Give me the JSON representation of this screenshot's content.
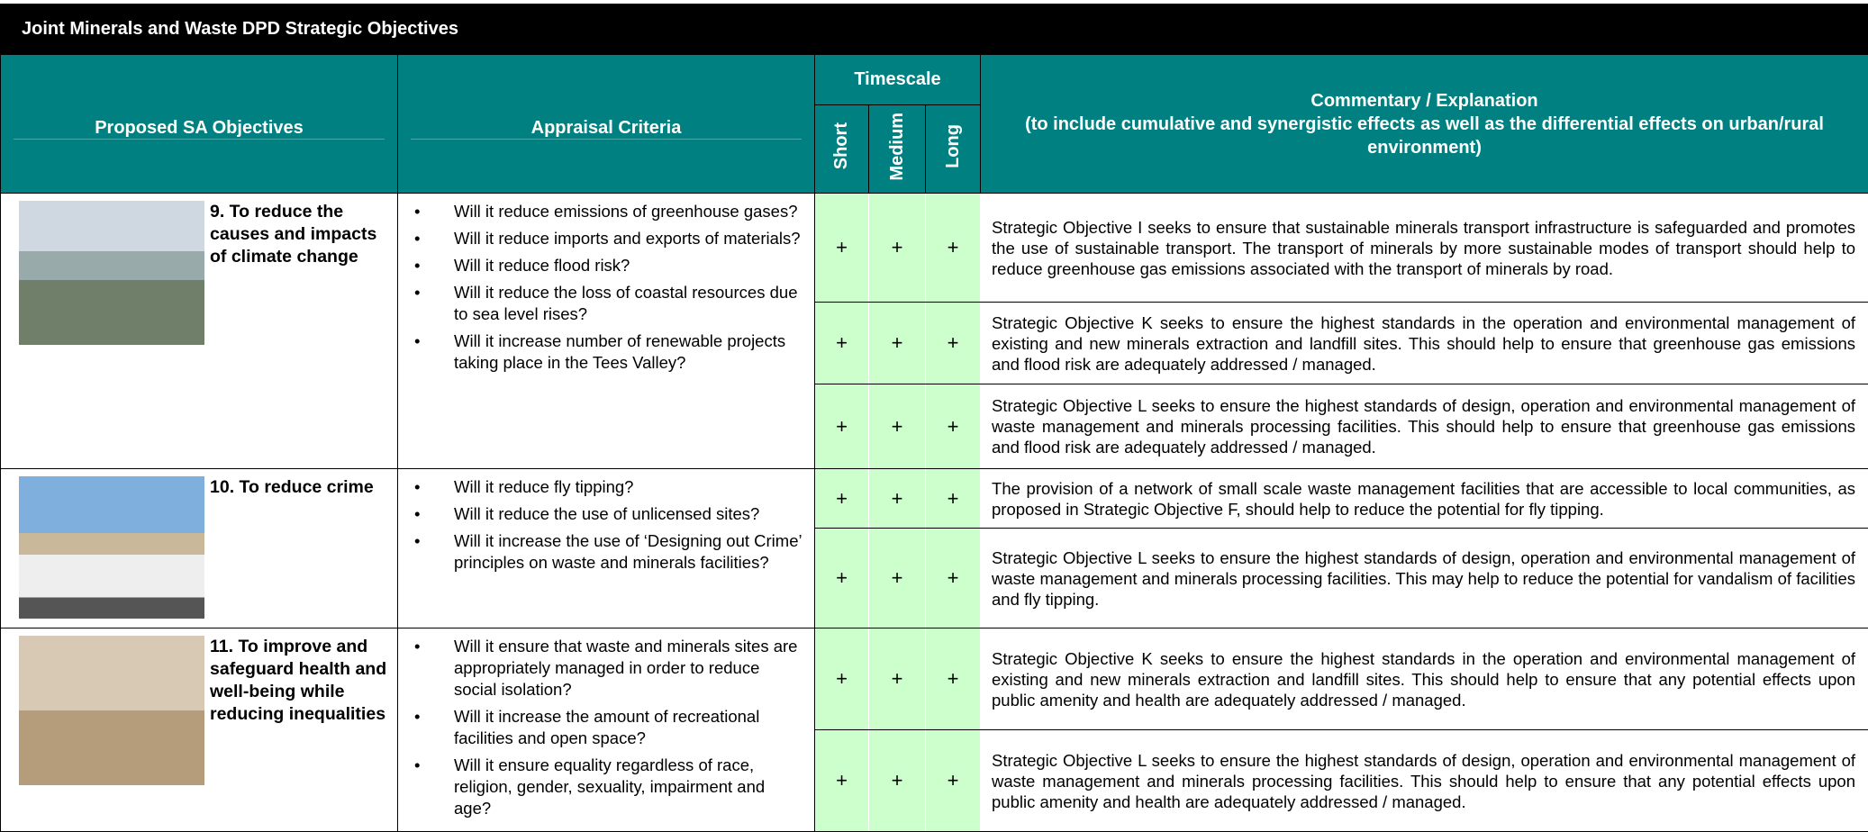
{
  "header": {
    "title": "Joint Minerals and Waste DPD Strategic Objectives"
  },
  "table": {
    "columns": {
      "objectives": "Proposed SA Objectives",
      "criteria": "Appraisal Criteria",
      "timescale": "Timescale",
      "short": "Short",
      "medium": "Medium",
      "long": "Long",
      "commentary": "Commentary / Explanation",
      "commentary_note": "(to include cumulative and synergistic effects as well as the differential effects on urban/rural environment)"
    },
    "rows": [
      {
        "objective": "9. To reduce the causes and impacts of climate change",
        "criteria": [
          "Will it reduce emissions of greenhouse gases?",
          "Will it reduce imports and exports of materials?",
          "Will it reduce flood risk?",
          "Will it reduce the loss of coastal resources due to sea level rises?",
          "Will it increase number of renewable projects taking place in the Tees Valley?"
        ],
        "assessments": [
          {
            "short": "+",
            "medium": "+",
            "long": "+",
            "commentary": "Strategic Objective I seeks to ensure that sustainable minerals transport infrastructure is safeguarded and promotes the use of sustainable transport. The transport of minerals by more sustainable modes of transport should help to reduce greenhouse gas emissions associated with the transport of minerals by road."
          },
          {
            "short": "+",
            "medium": "+",
            "long": "+",
            "commentary": "Strategic Objective K seeks to ensure the highest standards in the operation and environmental management of existing and new minerals extraction and landfill sites. This should help to ensure that greenhouse gas emissions and flood risk are adequately addressed / managed."
          },
          {
            "short": "+",
            "medium": "+",
            "long": "+",
            "commentary": "Strategic Objective L seeks to ensure the highest standards of design, operation and environmental management of waste management and minerals processing facilities. This should help to ensure that greenhouse gas emissions and flood risk are adequately addressed / managed."
          }
        ]
      },
      {
        "objective": "10. To reduce crime",
        "criteria": [
          "Will it reduce fly tipping?",
          "Will it reduce the use of unlicensed sites?",
          "Will it increase the use of ‘Designing out Crime’ principles on waste and minerals facilities?"
        ],
        "assessments": [
          {
            "short": "+",
            "medium": "+",
            "long": "+",
            "commentary": "The provision of a network of small scale waste management facilities that are accessible to local communities, as proposed in Strategic Objective F, should help to reduce the potential for fly tipping."
          },
          {
            "short": "+",
            "medium": "+",
            "long": "+",
            "commentary": "Strategic Objective L seeks to ensure the highest standards of design, operation and environmental management of waste management and minerals processing facilities. This may help to reduce the potential for vandalism of facilities and fly tipping."
          }
        ]
      },
      {
        "objective": "11. To improve and safeguard health and well-being while reducing inequalities",
        "criteria": [
          "Will it ensure that waste and minerals sites are appropriately managed in order to reduce social isolation?",
          "Will it increase the amount of recreational facilities and open space?",
          "Will it ensure equality regardless of race, religion, gender, sexuality, impairment and age?"
        ],
        "assessments": [
          {
            "short": "+",
            "medium": "+",
            "long": "+",
            "commentary": "Strategic Objective K seeks to ensure the highest standards in the operation and environmental management of existing and new minerals extraction and landfill sites. This should help to ensure that any potential effects upon public amenity and health are adequately addressed / managed."
          },
          {
            "short": "+",
            "medium": "+",
            "long": "+",
            "commentary": "Strategic Objective L seeks to ensure the highest standards of design, operation and environmental management of waste management and minerals processing facilities. This should help to ensure that any potential effects upon public amenity and health are adequately addressed / managed."
          }
        ]
      }
    ]
  }
}
